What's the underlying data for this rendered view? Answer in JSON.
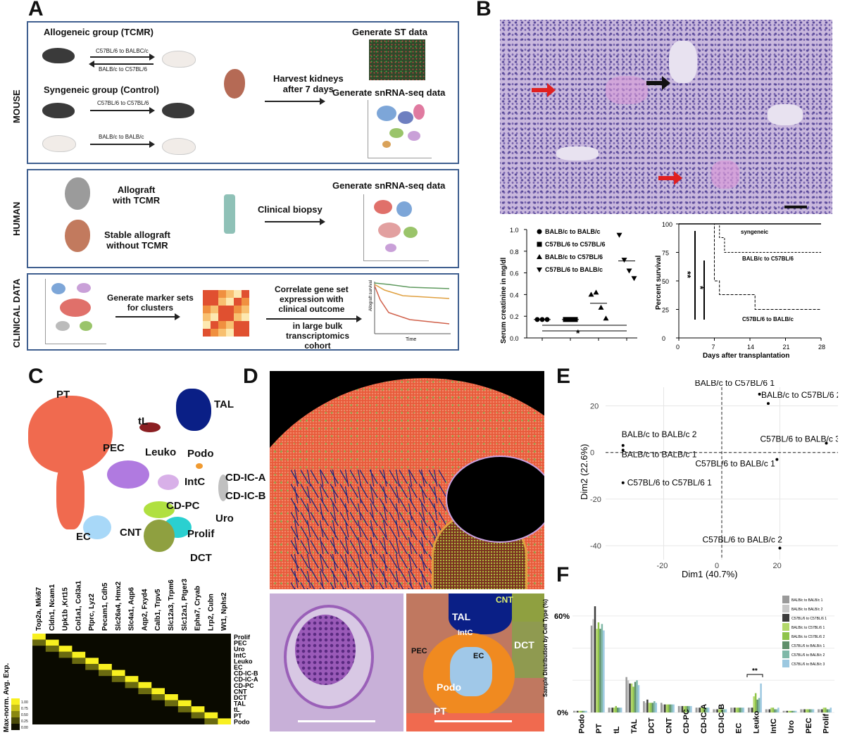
{
  "panels": {
    "a": "A",
    "b": "B",
    "c": "C",
    "d": "D",
    "e": "E",
    "f": "F"
  },
  "panelA": {
    "mouse_label": "MOUSE",
    "human_label": "HUMAN",
    "clinical_label": "CLINICAL DATA",
    "allo_title": "Allogeneic group (TCMR)",
    "arrow1": "C57BL/6 to BALBC/c",
    "arrow2": "BALB/c to C57BL/6",
    "syn_title": "Syngeneic group (Control)",
    "arrow3": "C57BL/6 to C57BL/6",
    "arrow4": "BALB/c to BALB/c",
    "harvest": "Harvest kidneys\nafter 7 days",
    "gen_st": "Generate ST data",
    "gen_sn1": "Generate snRNA-seq data",
    "allograft": "Allograft\nwith TCMR",
    "stable": "Stable allograft\nwithout TCMR",
    "biopsy": "Clinical biopsy",
    "gen_sn2": "Generate snRNA-seq data",
    "marker": "Generate marker sets\nfor clusters",
    "correlate": "Correlate gene set\nexpression with\nclinical outcome",
    "bulk": "in large bulk\ntranscriptomics\ncohort",
    "time": "Time",
    "allo_surv": "Allograft survival"
  },
  "panelB": {
    "creat": {
      "ylabel": "Serum creatinine in mg/dl",
      "yticks": [
        "0.0",
        "0.2",
        "0.4",
        "0.6",
        "0.8",
        "1.0"
      ],
      "legend": [
        "BALB/c to BALB/c",
        "C57BL/6 to C57BL/6",
        "BALB/c to C57BL/6",
        "C57BL/6 to BALB/c"
      ],
      "sig": "*"
    },
    "surv": {
      "ylabel": "Percent survival",
      "xlabel": "Days after transplantation",
      "yticks": [
        "0",
        "25",
        "50",
        "75",
        "100"
      ],
      "xticks": [
        "0",
        "7",
        "14",
        "21",
        "28"
      ],
      "lines": [
        "syngeneic",
        "BALB/c to C57BL/6",
        "C57BL/6 to BALB/c"
      ],
      "sig1": "**",
      "sig2": "*"
    }
  },
  "panelC": {
    "clusters": [
      "PT",
      "TAL",
      "tL",
      "PEC",
      "Leuko",
      "Podo",
      "IntC",
      "CD-IC-A",
      "CD-IC-B",
      "CD-PC",
      "EC",
      "CNT",
      "Prolif",
      "Uro",
      "DCT"
    ],
    "genes": [
      "Top2a, Mki67",
      "Cldn1, Ncam1",
      "Upk1b ,Krt15",
      "Col1a1, Col3a1",
      "Ptprc, Lyz2",
      "Pecam1, Cdh5",
      "Slc26a4, Hmx2",
      "Slc4a1, Aqp6",
      "Aqp2, Fxyd4",
      "Calb1, Trpv5",
      "Slc12a3, Trpm6",
      "Slc12a1, Ptger3",
      "Epha7, Cryab",
      "Lrp2, Cubn",
      "Wt1, Nphs2"
    ],
    "rows": [
      "Prolif",
      "PEC",
      "Uro",
      "IntC",
      "Leuko",
      "EC",
      "CD-IC-B",
      "CD-IC-A",
      "CD-PC",
      "CNT",
      "DCT",
      "TAL",
      "tL",
      "PT",
      "Podo"
    ],
    "scale_label": "Max-norm. Avg. Exp.",
    "scale_ticks": [
      "1.00",
      "0.75",
      "0.50",
      "0.25",
      "0.00"
    ]
  },
  "panelD": {
    "labels": [
      "CNT",
      "TAL",
      "IntC",
      "PEC",
      "EC",
      "DCT",
      "Podo",
      "PT"
    ]
  },
  "panelE": {
    "xlabel": "Dim1 (40.7%)",
    "ylabel": "Dim2 (22.6%)",
    "xticks": [
      "-20",
      "0",
      "20"
    ],
    "yticks": [
      "20",
      "0",
      "-20",
      "-40"
    ],
    "points": [
      {
        "label": "BALB/c to C57BL/6 1",
        "x": 13,
        "y": 25
      },
      {
        "label": "BALB/c to C57BL/6 2",
        "x": 16,
        "y": 21
      },
      {
        "label": "BALB/c to BALB/c 2",
        "x": -34,
        "y": 3
      },
      {
        "label": "C57BL/6 to BALB/c 3",
        "x": 36,
        "y": 4
      },
      {
        "label": "BALB/c to BALB/c 1",
        "x": -34,
        "y": 1
      },
      {
        "label": "C57BL/6 to BALB/c 1",
        "x": 19,
        "y": -3
      },
      {
        "label": "C57BL/6 to C57BL/6 1",
        "x": -34,
        "y": -13
      },
      {
        "label": "C57BL/6 to BALB/c 2",
        "x": 20,
        "y": -41
      }
    ]
  },
  "panelF": {
    "ylabel": "Sample Distribution by Cell Type (%)",
    "yticks": [
      "60%",
      "0%"
    ],
    "categories": [
      "Podo",
      "PT",
      "tL",
      "TAL",
      "DCT",
      "CNT",
      "CD-PC",
      "CD-IC-A",
      "CD-IC-B",
      "EC",
      "Leuko",
      "IntC",
      "Uro",
      "PEC",
      "Prolif"
    ],
    "legend": [
      "BALB/c to BALB/c 1",
      "BALB/c to BALB/c 2",
      "C57BL/6 to C57BL/6 1",
      "BALB/c to C57BL/6 1",
      "BALB/c to C57BL/6 2",
      "C57BL/6 to BALB/c 1",
      "C57BL/6 to BALB/c 2",
      "C57BL/6 to BALB/c 3"
    ],
    "legend_colors": [
      "#9a9a9a",
      "#c8c8c8",
      "#3c3c3c",
      "#b3d86a",
      "#8fc44a",
      "#5f8f6a",
      "#7fb8a8",
      "#9cc8e0"
    ],
    "sig": "**",
    "values": {
      "Podo": [
        1,
        1,
        1,
        1,
        1,
        1,
        1,
        1
      ],
      "PT": [
        54,
        58,
        66,
        52,
        56,
        52,
        55,
        51
      ],
      "tL": [
        3,
        3,
        3,
        3,
        4,
        3,
        3,
        3
      ],
      "TAL": [
        22,
        20,
        18,
        18,
        16,
        19,
        20,
        17
      ],
      "DCT": [
        7,
        6,
        8,
        6,
        6,
        6,
        7,
        6
      ],
      "CNT": [
        6,
        5,
        5,
        5,
        5,
        5,
        5,
        5
      ],
      "CD-PC": [
        4,
        4,
        4,
        4,
        4,
        4,
        4,
        4
      ],
      "CD-IC-A": [
        3,
        3,
        3,
        3,
        3,
        3,
        3,
        3
      ],
      "CD-IC-B": [
        2,
        2,
        2,
        2,
        2,
        2,
        2,
        2
      ],
      "EC": [
        3,
        3,
        3,
        3,
        3,
        3,
        3,
        3
      ],
      "Leuko": [
        3,
        3,
        3,
        10,
        12,
        8,
        9,
        18
      ],
      "IntC": [
        2,
        2,
        2,
        3,
        3,
        2,
        2,
        3
      ],
      "Uro": [
        1,
        1,
        1,
        1,
        1,
        1,
        1,
        1
      ],
      "PEC": [
        2,
        2,
        2,
        2,
        2,
        2,
        2,
        2
      ],
      "Prolif": [
        2,
        2,
        2,
        3,
        3,
        2,
        2,
        3
      ]
    }
  }
}
